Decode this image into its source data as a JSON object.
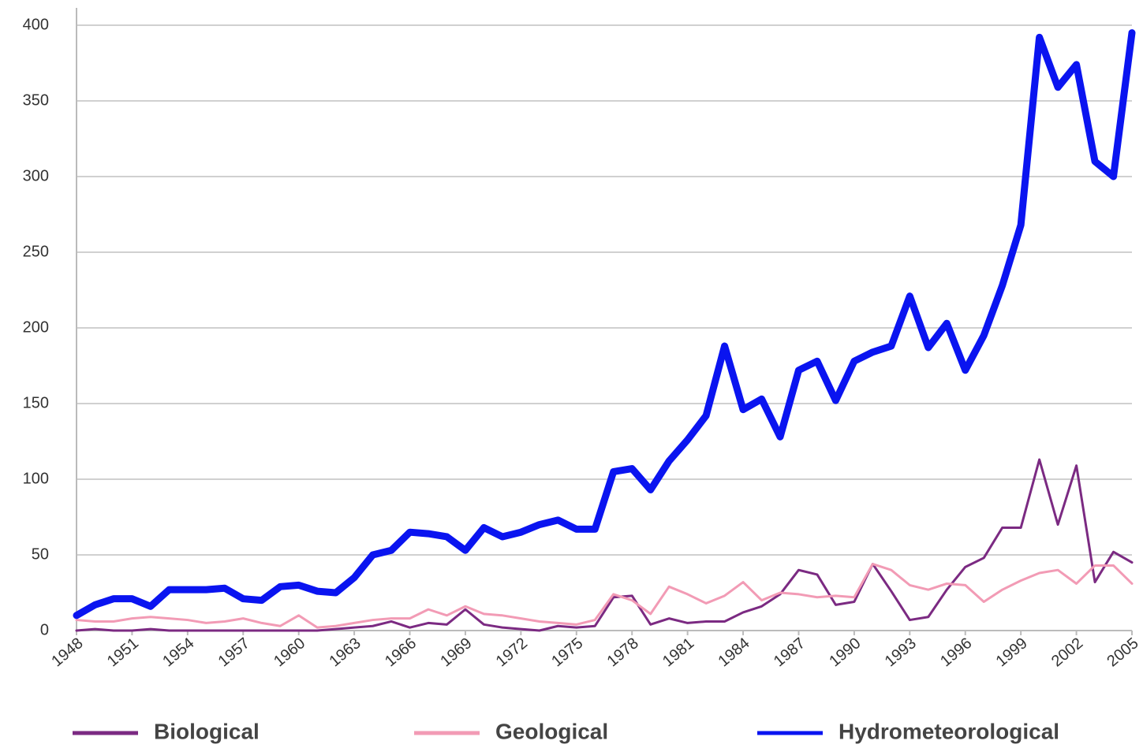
{
  "chart_data": {
    "type": "line",
    "x": [
      1948,
      1949,
      1950,
      1951,
      1952,
      1953,
      1954,
      1955,
      1956,
      1957,
      1958,
      1959,
      1960,
      1961,
      1962,
      1963,
      1964,
      1965,
      1966,
      1967,
      1968,
      1969,
      1970,
      1971,
      1972,
      1973,
      1974,
      1975,
      1976,
      1977,
      1978,
      1979,
      1980,
      1981,
      1982,
      1983,
      1984,
      1985,
      1986,
      1987,
      1988,
      1989,
      1990,
      1991,
      1992,
      1993,
      1994,
      1995,
      1996,
      1997,
      1998,
      1999,
      2000,
      2001,
      2002,
      2003,
      2004,
      2005
    ],
    "series": [
      {
        "name": "Biological",
        "color": "#7b2a82",
        "values": [
          0,
          1,
          0,
          0,
          1,
          0,
          0,
          0,
          0,
          0,
          0,
          0,
          0,
          0,
          1,
          2,
          3,
          6,
          2,
          5,
          4,
          14,
          4,
          2,
          1,
          0,
          3,
          2,
          3,
          22,
          23,
          4,
          8,
          5,
          6,
          6,
          12,
          16,
          24,
          40,
          37,
          17,
          19,
          44,
          26,
          7,
          9,
          27,
          42,
          48,
          68,
          68,
          113,
          70,
          109,
          32,
          52,
          45
        ]
      },
      {
        "name": "Geological",
        "color": "#f29bb5",
        "values": [
          7,
          6,
          6,
          8,
          9,
          8,
          7,
          5,
          6,
          8,
          5,
          3,
          10,
          2,
          3,
          5,
          7,
          8,
          8,
          14,
          10,
          16,
          11,
          10,
          8,
          6,
          5,
          4,
          7,
          24,
          20,
          11,
          29,
          24,
          18,
          23,
          32,
          20,
          25,
          24,
          22,
          23,
          22,
          44,
          40,
          30,
          27,
          31,
          30,
          19,
          27,
          33,
          38,
          40,
          31,
          43,
          43,
          31
        ]
      },
      {
        "name": "Hydrometeorological",
        "color": "#0a14f0",
        "values": [
          10,
          17,
          21,
          21,
          16,
          27,
          27,
          27,
          28,
          21,
          20,
          29,
          30,
          26,
          25,
          35,
          50,
          53,
          65,
          64,
          62,
          53,
          68,
          62,
          65,
          70,
          73,
          67,
          67,
          105,
          107,
          93,
          112,
          126,
          142,
          188,
          146,
          153,
          128,
          172,
          178,
          152,
          178,
          184,
          188,
          221,
          187,
          203,
          172,
          195,
          228,
          268,
          392,
          359,
          374,
          310,
          300,
          395
        ]
      }
    ],
    "xlim": [
      1948,
      2005
    ],
    "xticks": [
      1948,
      1951,
      1954,
      1957,
      1960,
      1963,
      1966,
      1969,
      1972,
      1975,
      1978,
      1981,
      1984,
      1987,
      1990,
      1993,
      1996,
      1999,
      2002,
      2005
    ],
    "ylim": [
      0,
      400
    ],
    "yticks": [
      0,
      50,
      100,
      150,
      200,
      250,
      300,
      350,
      400
    ],
    "grid": true,
    "legend": "bottom"
  }
}
